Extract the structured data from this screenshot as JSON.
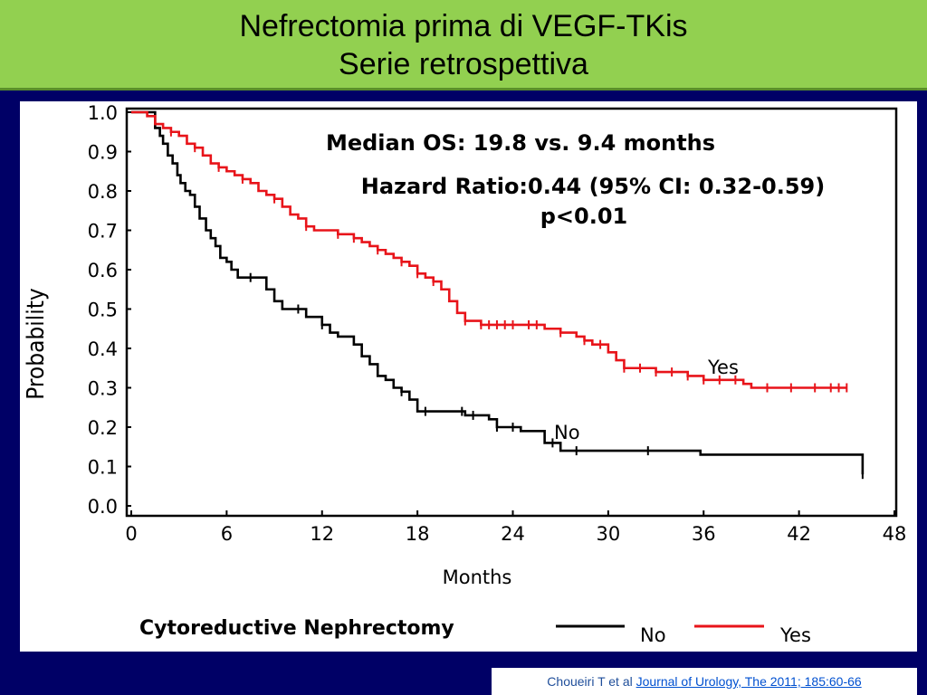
{
  "header": {
    "title_line1": "Nefrectomia prima di VEGF-TKis",
    "title_line2": "Serie retrospettiva"
  },
  "citation": {
    "authors": "Choueiri T et al ",
    "journal": "Journal of Urology, The 2011; 185:60-66"
  },
  "colors": {
    "header_bg": "#92d050",
    "page_bg": "#000066",
    "series_no": "#000000",
    "series_yes": "#e8141a"
  },
  "chart_data": {
    "type": "line",
    "style": "step",
    "xlabel": "Months",
    "ylabel": "Probability",
    "xlim": [
      0,
      48
    ],
    "ylim": [
      0,
      1
    ],
    "x_ticks": [
      "0",
      "6",
      "12",
      "18",
      "24",
      "30",
      "36",
      "42",
      "48"
    ],
    "y_ticks": [
      "0.0",
      "0.1",
      "0.2",
      "0.3",
      "0.4",
      "0.5",
      "0.6",
      "0.7",
      "0.8",
      "0.9",
      "1.0"
    ],
    "annotations": [
      "Median OS: 19.8 vs. 9.4 months",
      "Hazard Ratio:0.44 (95% CI: 0.32-0.59)",
      "p<0.01"
    ],
    "legend": {
      "title": "Cytoreductive Nephrectomy",
      "position": "bottom",
      "entries": [
        "No",
        "Yes"
      ]
    },
    "series": [
      {
        "name": "No",
        "color": "#000000",
        "line_label": "No",
        "x": [
          0,
          1.5,
          1.8,
          2.0,
          2.3,
          2.6,
          2.9,
          3.1,
          3.4,
          3.7,
          4.0,
          4.3,
          4.7,
          5.0,
          5.3,
          5.6,
          6.0,
          6.3,
          6.7,
          7.0,
          7.5,
          8.5,
          9.0,
          9.5,
          10.0,
          11.0,
          12.0,
          12.5,
          13.0,
          13.5,
          14.0,
          14.5,
          15.0,
          15.5,
          16.0,
          16.5,
          17.0,
          17.5,
          18.0,
          21.0,
          22.5,
          23.0,
          24.5,
          26.0,
          27.0,
          35.8,
          46.0
        ],
        "y": [
          1.0,
          0.96,
          0.94,
          0.92,
          0.89,
          0.87,
          0.84,
          0.82,
          0.8,
          0.79,
          0.76,
          0.73,
          0.7,
          0.68,
          0.66,
          0.63,
          0.62,
          0.6,
          0.58,
          0.58,
          0.58,
          0.55,
          0.52,
          0.5,
          0.5,
          0.48,
          0.46,
          0.44,
          0.43,
          0.43,
          0.41,
          0.38,
          0.36,
          0.33,
          0.32,
          0.3,
          0.29,
          0.27,
          0.24,
          0.23,
          0.22,
          0.2,
          0.19,
          0.16,
          0.14,
          0.13,
          0.08
        ],
        "censor_x": [
          7.5,
          10.5,
          12.0,
          17.0,
          18.5,
          20.8,
          21.5,
          23.0,
          24.0,
          26.5,
          28.0,
          32.5,
          46.0
        ]
      },
      {
        "name": "Yes",
        "color": "#e8141a",
        "line_label": "Yes",
        "x": [
          0,
          1.0,
          1.5,
          2.0,
          2.5,
          3.0,
          3.5,
          4.0,
          4.5,
          5.0,
          5.5,
          6.0,
          6.5,
          7.0,
          7.5,
          8.0,
          8.5,
          9.0,
          9.5,
          10.0,
          10.5,
          11.0,
          11.5,
          12.0,
          13.0,
          14.0,
          14.5,
          15.0,
          15.5,
          16.0,
          16.5,
          17.0,
          17.5,
          18.0,
          18.5,
          19.0,
          19.5,
          20.0,
          20.5,
          21.0,
          22.0,
          26.0,
          27.0,
          28.0,
          28.5,
          29.0,
          30.0,
          30.5,
          31.0,
          33.0,
          35.0,
          36.0,
          37.0,
          38.0,
          38.5,
          39.0,
          45.0
        ],
        "y": [
          1.0,
          0.99,
          0.97,
          0.96,
          0.95,
          0.94,
          0.92,
          0.91,
          0.89,
          0.87,
          0.86,
          0.85,
          0.84,
          0.83,
          0.82,
          0.8,
          0.79,
          0.78,
          0.76,
          0.74,
          0.73,
          0.71,
          0.7,
          0.7,
          0.69,
          0.68,
          0.67,
          0.66,
          0.65,
          0.64,
          0.63,
          0.62,
          0.61,
          0.59,
          0.58,
          0.57,
          0.55,
          0.52,
          0.49,
          0.47,
          0.46,
          0.45,
          0.44,
          0.43,
          0.42,
          0.41,
          0.39,
          0.37,
          0.35,
          0.34,
          0.33,
          0.32,
          0.32,
          0.32,
          0.31,
          0.3,
          0.3
        ],
        "censor_x": [
          2.5,
          4.0,
          5.5,
          7.0,
          9.0,
          11.0,
          13.0,
          14.0,
          15.5,
          17.0,
          18.0,
          19.0,
          21.0,
          22.0,
          22.5,
          23.0,
          23.5,
          24.0,
          25.0,
          25.5,
          27.0,
          28.5,
          29.5,
          31.0,
          32.0,
          33.0,
          34.0,
          35.0,
          36.0,
          37.0,
          38.0,
          40.0,
          41.5,
          43.0,
          44.0,
          44.5,
          45.0
        ]
      }
    ]
  }
}
